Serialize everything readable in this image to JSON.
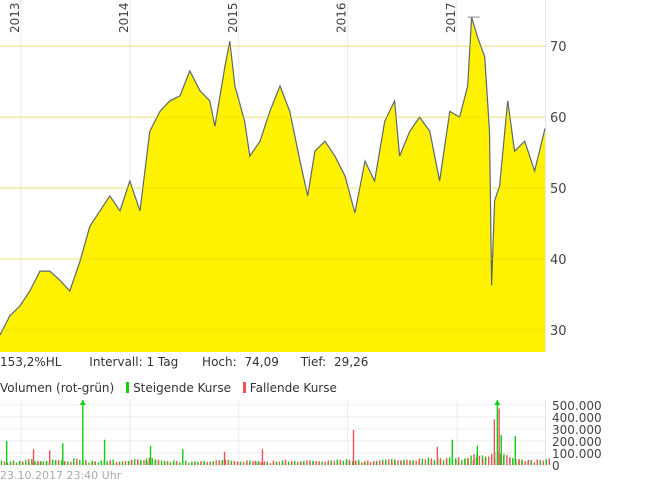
{
  "chart_data": [
    {
      "type": "area",
      "x_ticks": [
        "2013",
        "2014",
        "2015",
        "2016",
        "2017"
      ],
      "y_ticks": [
        30,
        40,
        50,
        60,
        70
      ],
      "xlim": [
        "2012-10-23",
        "2017-10-23"
      ],
      "ylim": [
        26.9,
        76.5
      ],
      "grid": true,
      "fill_color": "#fff200",
      "line_color": "#5f6670",
      "x": [
        "2012-10-23",
        "2012-11-25",
        "2012-12-29",
        "2013-01-31",
        "2013-03-06",
        "2013-04-08",
        "2013-05-12",
        "2013-06-14",
        "2013-07-18",
        "2013-08-20",
        "2013-09-23",
        "2013-10-26",
        "2013-11-29",
        "2014-01-01",
        "2014-02-04",
        "2014-03-09",
        "2014-04-12",
        "2014-05-15",
        "2014-06-18",
        "2014-07-21",
        "2014-08-24",
        "2014-09-26",
        "2014-10-13",
        "2014-11-16",
        "2014-12-02",
        "2014-12-19",
        "2015-01-21",
        "2015-02-07",
        "2015-03-13",
        "2015-04-15",
        "2015-05-19",
        "2015-06-21",
        "2015-07-25",
        "2015-08-20",
        "2015-09-13",
        "2015-10-17",
        "2015-11-19",
        "2015-12-23",
        "2016-01-25",
        "2016-02-28",
        "2016-03-31",
        "2016-05-04",
        "2016-06-06",
        "2016-06-23",
        "2016-07-27",
        "2016-08-29",
        "2016-10-02",
        "2016-11-04",
        "2016-12-08",
        "2017-01-10",
        "2017-02-06",
        "2017-02-19",
        "2017-03-11",
        "2017-04-04",
        "2017-04-20",
        "2017-04-27",
        "2017-05-07",
        "2017-05-24",
        "2017-06-20",
        "2017-07-13",
        "2017-08-16",
        "2017-09-18",
        "2017-10-23"
      ],
      "y": [
        29.3,
        32,
        33.4,
        35.5,
        38.3,
        38.3,
        37,
        35.5,
        39.7,
        44.6,
        46.8,
        48.9,
        46.8,
        51,
        46.8,
        58,
        60.8,
        62.3,
        63,
        66.5,
        63.7,
        62.3,
        58.7,
        67.2,
        70.7,
        64.4,
        59.4,
        54.5,
        56.6,
        60.8,
        64.4,
        60.8,
        53.8,
        48.9,
        55.2,
        56.6,
        54.5,
        51.7,
        46.5,
        53.8,
        51,
        59.4,
        62.3,
        54.5,
        58,
        60,
        58,
        51,
        60.8,
        60,
        64.4,
        74.09,
        71.3,
        68.5,
        58,
        36.3,
        48.2,
        50.3,
        62.3,
        55.2,
        56.6,
        52.4,
        58.4
      ]
    },
    {
      "type": "bar",
      "title": "Volumen (rot-grün)",
      "legend": [
        {
          "name": "Steigende Kurse",
          "color": "#11cc11"
        },
        {
          "name": "Fallende Kurse",
          "color": "#f0505a"
        }
      ],
      "y_ticks": [
        "500.000",
        "400.000",
        "300.000",
        "200.000",
        "100.000",
        "0"
      ],
      "ylim": [
        0,
        540000
      ],
      "grid": true,
      "monthly": {
        "x": [
          "2012-11",
          "2012-12",
          "2013-01",
          "2013-02",
          "2013-03",
          "2013-04",
          "2013-05",
          "2013-06",
          "2013-07",
          "2013-08",
          "2013-09",
          "2013-10",
          "2013-11",
          "2013-12",
          "2014-01",
          "2014-02",
          "2014-03",
          "2014-04",
          "2014-05",
          "2014-06",
          "2014-07",
          "2014-08",
          "2014-09",
          "2014-10",
          "2014-11",
          "2014-12",
          "2015-01",
          "2015-02",
          "2015-03",
          "2015-04",
          "2015-05",
          "2015-06",
          "2015-07",
          "2015-08",
          "2015-09",
          "2015-10",
          "2015-11",
          "2015-12",
          "2016-01",
          "2016-02",
          "2016-03",
          "2016-04",
          "2016-05",
          "2016-06",
          "2016-07",
          "2016-08",
          "2016-09",
          "2016-10",
          "2016-11",
          "2016-12",
          "2017-01",
          "2017-02",
          "2017-03",
          "2017-04",
          "2017-05",
          "2017-06",
          "2017-07",
          "2017-08",
          "2017-09",
          "2017-10"
        ],
        "volume": [
          40000,
          30000,
          50000,
          35000,
          30000,
          45000,
          40000,
          30000,
          55000,
          35000,
          40000,
          45000,
          30000,
          35000,
          50000,
          40000,
          60000,
          45000,
          35000,
          40000,
          30000,
          35000,
          30000,
          40000,
          45000,
          35000,
          30000,
          40000,
          35000,
          30000,
          45000,
          35000,
          30000,
          40000,
          35000,
          30000,
          40000,
          45000,
          50000,
          40000,
          35000,
          45000,
          50000,
          40000,
          45000,
          40000,
          55000,
          60000,
          70000,
          65000,
          55000,
          90000,
          80000,
          70000,
          110000,
          90000,
          60000,
          50000,
          45000,
          55000
        ],
        "direction": [
          "up",
          "down",
          "up",
          "down",
          "up",
          "down",
          "up",
          "up",
          "up",
          "down",
          "up",
          "down",
          "down",
          "up",
          "up",
          "up",
          "up",
          "down",
          "up",
          "down",
          "up",
          "down",
          "down",
          "up",
          "down",
          "up",
          "down",
          "up",
          "down",
          "up",
          "down",
          "down",
          "down",
          "up",
          "down",
          "up",
          "down",
          "down",
          "up",
          "up",
          "down",
          "up",
          "down",
          "up",
          "down",
          "up",
          "down",
          "down",
          "up",
          "up",
          "up",
          "down",
          "down",
          "up",
          "down",
          "up",
          "down",
          "up",
          "down",
          "up"
        ]
      },
      "spikes": {
        "x": [
          "2012-11-12",
          "2013-02-10",
          "2013-04-05",
          "2013-05-19",
          "2013-07-25",
          "2013-10-06",
          "2014-03-09",
          "2014-06-25",
          "2014-11-12",
          "2015-03-19",
          "2016-01-18",
          "2016-10-25",
          "2016-12-14",
          "2017-03-08",
          "2017-05-04",
          "2017-05-14",
          "2017-05-20",
          "2017-05-27",
          "2017-07-13"
        ],
        "volume": [
          200000,
          130000,
          120000,
          180000,
          550000,
          210000,
          160000,
          130000,
          110000,
          130000,
          290000,
          150000,
          210000,
          160000,
          380000,
          560000,
          470000,
          250000,
          240000
        ],
        "direction": [
          "up",
          "down",
          "down",
          "up",
          "up",
          "up",
          "up",
          "up",
          "down",
          "down",
          "down",
          "down",
          "up",
          "up",
          "down",
          "up",
          "down",
          "up",
          "up"
        ]
      }
    }
  ],
  "stats": {
    "performance": "153,2%HL",
    "interval": "Intervall: 1 Tag",
    "high_label": "Hoch:",
    "high_value": "74,09",
    "low_label": "Tief:",
    "low_value": "29,26"
  },
  "timestamp": "23.10.2017 23:40 Uhr"
}
